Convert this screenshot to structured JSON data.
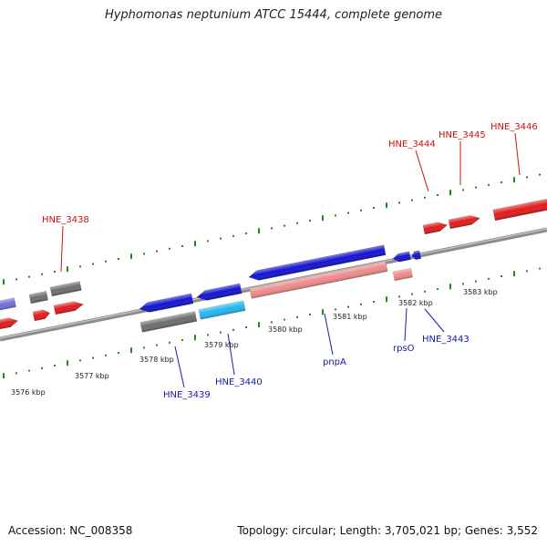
{
  "title": "Hyphomonas neptunium ATCC 15444, complete genome",
  "footer": {
    "accession": "Accession: NC_008358",
    "topology": "Topology: circular; Length: 3,705,021 bp; Genes: 3,552"
  },
  "colors": {
    "forward": "#e31b1b",
    "forward_light": "#ef8c8c",
    "reverse": "#1414d2",
    "reverse_light": "#22b8f0",
    "purple": "#7070d8",
    "gray": "#6e6e6e",
    "backbone": "#8c8c8c",
    "ticks": "#1f8a1f",
    "label_red": "#cc1111",
    "label_blue": "#1a1aa6"
  },
  "kbp_labels": [
    "3576 kbp",
    "3577 kbp",
    "3578 kbp",
    "3579 kbp",
    "3580 kbp",
    "3581 kbp",
    "3582 kbp",
    "3583 kbp"
  ],
  "gene_labels": [
    {
      "name": "HNE_3438",
      "strand": "forward"
    },
    {
      "name": "HNE_3439",
      "strand": "reverse"
    },
    {
      "name": "HNE_3440",
      "strand": "reverse"
    },
    {
      "name": "pnpA",
      "strand": "reverse"
    },
    {
      "name": "rpsO",
      "strand": "reverse"
    },
    {
      "name": "HNE_3443",
      "strand": "reverse"
    },
    {
      "name": "HNE_3444",
      "strand": "forward"
    },
    {
      "name": "HNE_3445",
      "strand": "forward"
    },
    {
      "name": "HNE_3446",
      "strand": "forward"
    }
  ]
}
